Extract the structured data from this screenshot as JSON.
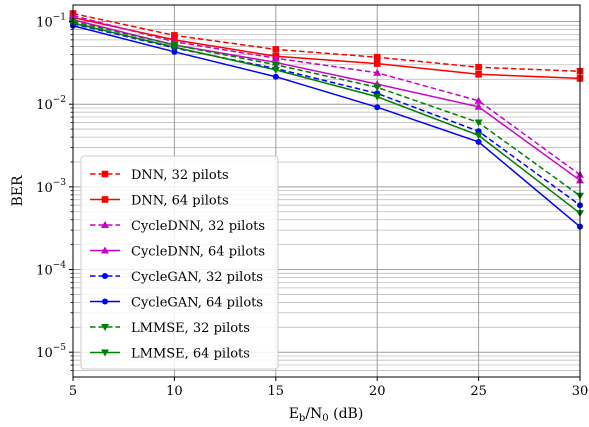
{
  "chart_data": {
    "type": "line",
    "title": "",
    "xlabel_main": "E",
    "xlabel_sub1": "b",
    "xlabel_mid": "/N",
    "xlabel_sub2": "0",
    "xlabel_tail": " (dB)",
    "ylabel": "BER",
    "xlim": [
      5,
      30
    ],
    "ylim_log10": [
      -5.3,
      -0.8
    ],
    "y_scale": "log",
    "grid": true,
    "legend_position": "lower-left",
    "x_ticks": [
      "5",
      "10",
      "15",
      "20",
      "25",
      "30"
    ],
    "y_ticks": [
      {
        "base": "10",
        "exp": "−5"
      },
      {
        "base": "10",
        "exp": "−4"
      },
      {
        "base": "10",
        "exp": "−3"
      },
      {
        "base": "10",
        "exp": "−2"
      },
      {
        "base": "10",
        "exp": "−1"
      }
    ],
    "x": [
      5,
      10,
      15,
      20,
      25,
      30
    ],
    "series": [
      {
        "name": "DNN, 32 pilots",
        "color": "#ff0000",
        "dashed": true,
        "marker": "square",
        "values": [
          0.125,
          0.068,
          0.046,
          0.037,
          0.028,
          0.025
        ]
      },
      {
        "name": "DNN, 64 pilots",
        "color": "#ff0000",
        "dashed": false,
        "marker": "square",
        "values": [
          0.112,
          0.06,
          0.038,
          0.031,
          0.023,
          0.0205
        ]
      },
      {
        "name": "CycleDNN, 32 pilots",
        "color": "#cc00cc",
        "dashed": true,
        "marker": "triangle-up",
        "values": [
          0.118,
          0.057,
          0.036,
          0.024,
          0.011,
          0.0014
        ]
      },
      {
        "name": "CycleDNN, 64 pilots",
        "color": "#cc00cc",
        "dashed": false,
        "marker": "triangle-up",
        "values": [
          0.105,
          0.052,
          0.032,
          0.0175,
          0.0093,
          0.0012
        ]
      },
      {
        "name": "CycleGAN, 32 pilots",
        "color": "#0000ff",
        "dashed": true,
        "marker": "circle",
        "values": [
          0.094,
          0.048,
          0.027,
          0.0135,
          0.0047,
          0.0006
        ]
      },
      {
        "name": "CycleGAN, 64 pilots",
        "color": "#0000ff",
        "dashed": false,
        "marker": "circle",
        "values": [
          0.089,
          0.043,
          0.0215,
          0.0092,
          0.0035,
          0.00033
        ]
      },
      {
        "name": "LMMSE, 32 pilots",
        "color": "#008000",
        "dashed": true,
        "marker": "triangle-down",
        "values": [
          0.1,
          0.052,
          0.03,
          0.016,
          0.006,
          0.00078
        ]
      },
      {
        "name": "LMMSE, 64 pilots",
        "color": "#008000",
        "dashed": false,
        "marker": "triangle-down",
        "values": [
          0.096,
          0.049,
          0.026,
          0.0123,
          0.0042,
          0.00048
        ]
      }
    ]
  }
}
